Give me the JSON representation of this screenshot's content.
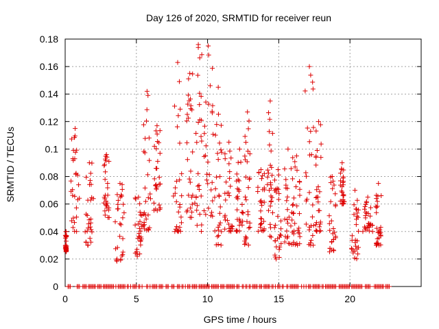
{
  "chart_data": {
    "type": "scatter",
    "title": "Day 126 of 2020, SRMTID for receiver reun",
    "xlabel": "GPS time / hours",
    "ylabel": "SRMTID / TECUs",
    "xlim": [
      0,
      25
    ],
    "ylim": [
      0,
      0.18
    ],
    "xticks": [
      0,
      5,
      10,
      15,
      20
    ],
    "xtick_labels": [
      "0",
      "5",
      "10",
      "15",
      "20"
    ],
    "yticks": [
      0,
      0.02,
      0.04,
      0.06,
      0.08,
      0.1,
      0.12,
      0.14,
      0.16,
      0.18
    ],
    "ytick_labels": [
      "0",
      "0.02",
      "0.04",
      "0.06",
      "0.08",
      "0.1",
      "0.12",
      "0.14",
      "0.16",
      "0.18"
    ],
    "grid": true,
    "marker": "plus",
    "series_color": "#dd0000",
    "clusters": [
      {
        "x": [
          0.0,
          0.1
        ],
        "y": [
          0.025,
          0.04
        ]
      },
      {
        "x": [
          0.4,
          1.0
        ],
        "y": [
          0.04,
          0.115
        ]
      },
      {
        "x": [
          1.4,
          2.0
        ],
        "y": [
          0.03,
          0.09
        ]
      },
      {
        "x": [
          2.7,
          3.1
        ],
        "y": [
          0.05,
          0.096
        ]
      },
      {
        "x": [
          3.5,
          4.2
        ],
        "y": [
          0.018,
          0.075
        ]
      },
      {
        "x": [
          4.9,
          5.4
        ],
        "y": [
          0.022,
          0.065
        ]
      },
      {
        "x": [
          5.5,
          6.0
        ],
        "y": [
          0.04,
          0.142
        ]
      },
      {
        "x": [
          6.2,
          6.7
        ],
        "y": [
          0.055,
          0.117
        ]
      },
      {
        "x": [
          7.6,
          8.2
        ],
        "y": [
          0.04,
          0.163
        ]
      },
      {
        "x": [
          8.5,
          9.0
        ],
        "y": [
          0.05,
          0.155
        ]
      },
      {
        "x": [
          9.1,
          9.6
        ],
        "y": [
          0.04,
          0.176
        ]
      },
      {
        "x": [
          9.7,
          10.4
        ],
        "y": [
          0.05,
          0.175
        ]
      },
      {
        "x": [
          10.5,
          11.0
        ],
        "y": [
          0.03,
          0.145
        ]
      },
      {
        "x": [
          11.2,
          11.8
        ],
        "y": [
          0.04,
          0.105
        ]
      },
      {
        "x": [
          12.0,
          12.5
        ],
        "y": [
          0.04,
          0.1
        ]
      },
      {
        "x": [
          12.6,
          13.0
        ],
        "y": [
          0.03,
          0.127
        ]
      },
      {
        "x": [
          13.5,
          14.0
        ],
        "y": [
          0.04,
          0.085
        ]
      },
      {
        "x": [
          14.2,
          14.6
        ],
        "y": [
          0.035,
          0.135
        ]
      },
      {
        "x": [
          14.7,
          15.2
        ],
        "y": [
          0.02,
          0.085
        ]
      },
      {
        "x": [
          15.3,
          16.0
        ],
        "y": [
          0.03,
          0.1
        ]
      },
      {
        "x": [
          16.0,
          16.5
        ],
        "y": [
          0.03,
          0.095
        ]
      },
      {
        "x": [
          16.8,
          17.5
        ],
        "y": [
          0.03,
          0.16
        ]
      },
      {
        "x": [
          17.6,
          18.0
        ],
        "y": [
          0.04,
          0.12
        ]
      },
      {
        "x": [
          18.5,
          19.0
        ],
        "y": [
          0.025,
          0.08
        ]
      },
      {
        "x": [
          19.3,
          19.6
        ],
        "y": [
          0.06,
          0.09
        ]
      },
      {
        "x": [
          20.1,
          20.6
        ],
        "y": [
          0.02,
          0.07
        ]
      },
      {
        "x": [
          20.9,
          21.6
        ],
        "y": [
          0.04,
          0.065
        ]
      },
      {
        "x": [
          21.8,
          22.2
        ],
        "y": [
          0.03,
          0.075
        ]
      }
    ],
    "zero_line_range": [
      0.2,
      22.9
    ]
  }
}
